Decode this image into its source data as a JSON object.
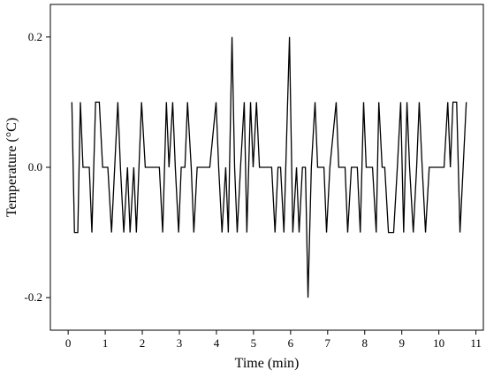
{
  "chart_data": {
    "type": "line",
    "xlabel": "Time (min)",
    "ylabel": "Temperature (°C)",
    "x": [
      0.1,
      0.17,
      0.26,
      0.33,
      0.4,
      0.57,
      0.64,
      0.74,
      0.84,
      0.93,
      1.07,
      1.17,
      1.34,
      1.41,
      1.5,
      1.6,
      1.67,
      1.77,
      1.84,
      1.98,
      2.08,
      2.46,
      2.55,
      2.65,
      2.72,
      2.82,
      2.89,
      2.98,
      3.05,
      3.15,
      3.22,
      3.32,
      3.39,
      3.48,
      3.82,
      3.99,
      4.06,
      4.15,
      4.25,
      4.32,
      4.42,
      4.49,
      4.56,
      4.65,
      4.75,
      4.82,
      4.92,
      4.99,
      5.08,
      5.16,
      5.49,
      5.58,
      5.66,
      5.73,
      5.82,
      5.97,
      6.06,
      6.16,
      6.23,
      6.32,
      6.4,
      6.47,
      6.56,
      6.66,
      6.73,
      6.9,
      6.97,
      7.06,
      7.23,
      7.3,
      7.47,
      7.54,
      7.64,
      7.8,
      7.88,
      7.97,
      8.04,
      8.21,
      8.31,
      8.38,
      8.47,
      8.54,
      8.64,
      8.78,
      8.88,
      8.97,
      9.05,
      9.14,
      9.21,
      9.31,
      9.4,
      9.47,
      9.55,
      9.64,
      9.74,
      10.14,
      10.24,
      10.31,
      10.38,
      10.48,
      10.57,
      10.74
    ],
    "values": [
      0.1,
      -0.1,
      -0.1,
      0.1,
      0,
      0,
      -0.1,
      0.1,
      0.1,
      0,
      0,
      -0.1,
      0.1,
      0,
      -0.1,
      0,
      -0.1,
      0,
      -0.1,
      0.1,
      0,
      0,
      -0.1,
      0.1,
      0,
      0.1,
      0,
      -0.1,
      0,
      0,
      0.1,
      0,
      -0.1,
      0,
      0,
      0.1,
      0,
      -0.1,
      0,
      -0.1,
      0.2,
      0,
      -0.1,
      0,
      0.1,
      -0.1,
      0.1,
      0,
      0.1,
      0,
      0,
      -0.1,
      0,
      0,
      -0.1,
      0.2,
      -0.1,
      0,
      -0.1,
      0,
      0,
      -0.2,
      0,
      0.1,
      0,
      0,
      -0.1,
      0,
      0.1,
      0,
      0,
      -0.1,
      0,
      0,
      -0.1,
      0.1,
      0,
      0,
      -0.1,
      0.1,
      0,
      0,
      -0.1,
      -0.1,
      0,
      0.1,
      -0.1,
      0.1,
      0,
      -0.1,
      0,
      0.1,
      0,
      -0.1,
      0,
      0,
      0.1,
      0,
      0.1,
      0.1,
      -0.1,
      0.1
    ],
    "color": "#000000",
    "xlim": [
      -0.48,
      11.2
    ],
    "xticks": [
      0,
      1,
      2,
      3,
      4,
      5,
      6,
      7,
      8,
      9,
      10,
      11
    ],
    "ylim": [
      -0.25,
      0.25
    ],
    "yticks": [
      -0.2,
      {
        "value": 0,
        "label": "0.0"
      },
      0.2
    ]
  }
}
